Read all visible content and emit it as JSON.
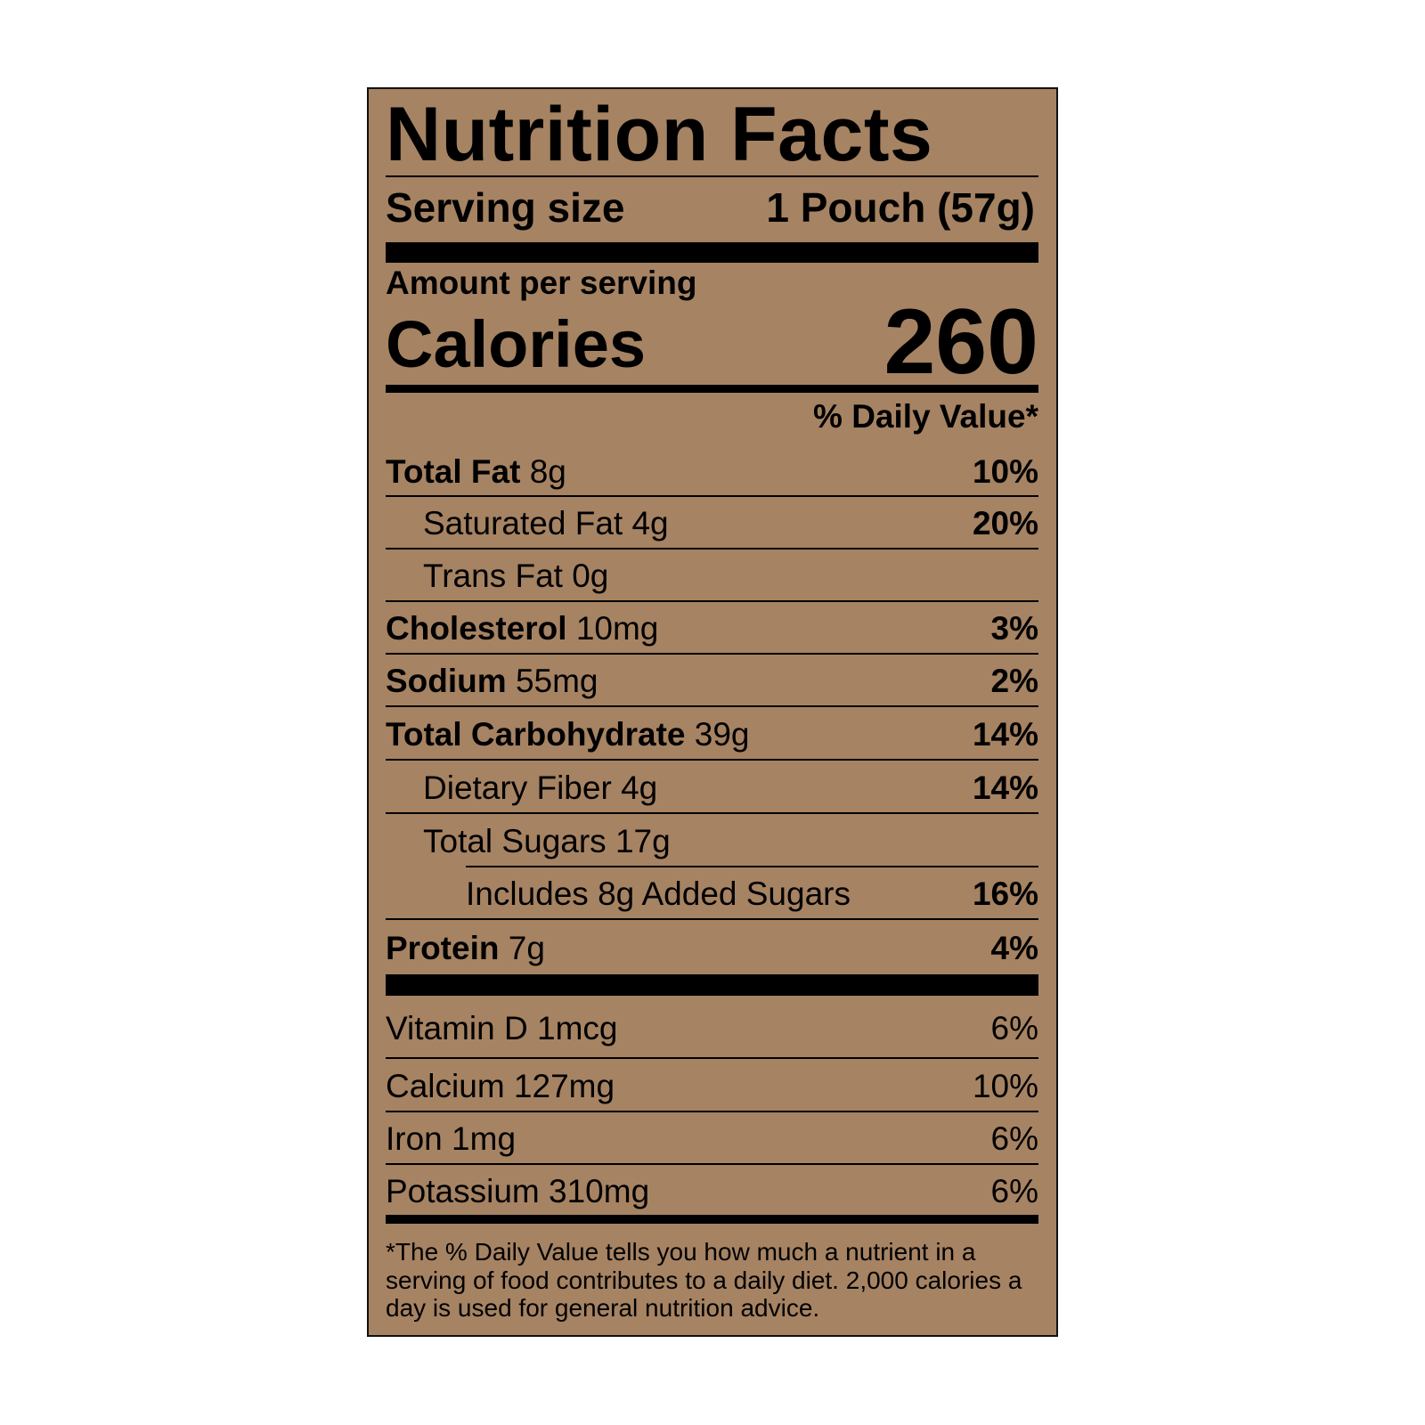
{
  "title": "Nutrition Facts",
  "serving": {
    "label": "Serving size",
    "value": "1 Pouch (57g)"
  },
  "amount_per_serving": "Amount per serving",
  "calories": {
    "label": "Calories",
    "value": "260"
  },
  "daily_value_header": "% Daily Value*",
  "nutrients": [
    {
      "name": "Total Fat",
      "amount": "8g",
      "dv": "10%"
    },
    {
      "name": "Saturated Fat",
      "amount": "4g",
      "dv": "20%"
    },
    {
      "name": "Trans Fat",
      "amount": "0g",
      "dv": ""
    },
    {
      "name": "Cholesterol",
      "amount": "10mg",
      "dv": "3%"
    },
    {
      "name": "Sodium",
      "amount": "55mg",
      "dv": "2%"
    },
    {
      "name": "Total Carbohydrate",
      "amount": "39g",
      "dv": "14%"
    },
    {
      "name": "Dietary Fiber",
      "amount": "4g",
      "dv": "14%"
    },
    {
      "name": "Total Sugars",
      "amount": "17g",
      "dv": ""
    },
    {
      "name": "Includes 8g Added Sugars",
      "amount": "",
      "dv": "16%"
    },
    {
      "name": "Protein",
      "amount": "7g",
      "dv": "4%"
    }
  ],
  "vitamins": [
    {
      "name": "Vitamin D",
      "amount": "1mcg",
      "dv": "6%"
    },
    {
      "name": "Calcium",
      "amount": "127mg",
      "dv": "10%"
    },
    {
      "name": "Iron",
      "amount": "1mg",
      "dv": "6%"
    },
    {
      "name": "Potassium",
      "amount": "310mg",
      "dv": "6%"
    }
  ],
  "footnote": "*The % Daily Value tells you how much a nutrient in a serving of food contributes to a daily diet. 2,000 calories a day is used for general nutrition advice.",
  "colors": {
    "label_background": "#a68363",
    "text": "#000000"
  }
}
